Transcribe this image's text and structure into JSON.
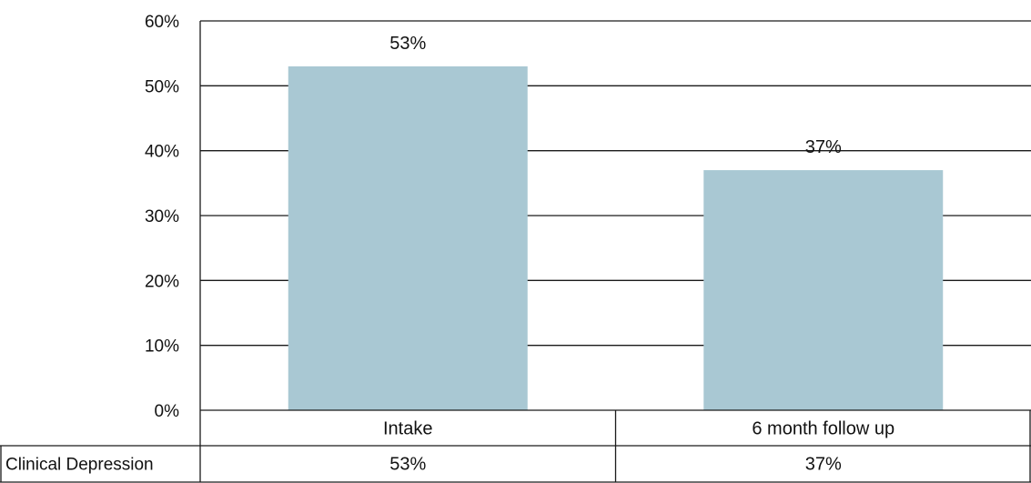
{
  "chart_data": {
    "type": "bar",
    "categories": [
      "Intake",
      "6 month follow up"
    ],
    "series": [
      {
        "name": "Clinical Depression",
        "values": [
          53,
          37
        ],
        "labels": [
          "53%",
          "37%"
        ]
      }
    ],
    "ylim": [
      0,
      60
    ],
    "yticks": [
      0,
      10,
      20,
      30,
      40,
      50,
      60
    ],
    "ytick_labels": [
      "0%",
      "10%",
      "20%",
      "30%",
      "40%",
      "50%",
      "60%"
    ],
    "grid": true,
    "data_table": true,
    "bar_color": "#a9c8d3",
    "title": "",
    "xlabel": "",
    "ylabel": ""
  }
}
